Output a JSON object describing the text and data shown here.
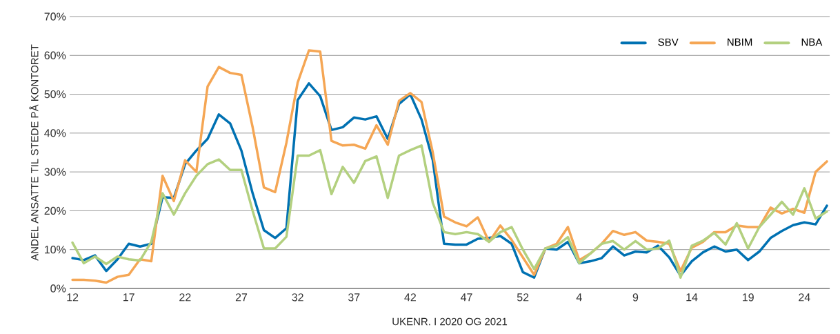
{
  "chart_data": {
    "type": "line",
    "xlabel": "UKENR. I 2020 OG 2021",
    "ylabel": "ANDEL ANSATTE TIL STEDE PÅ KONTORET",
    "categories": [
      "12",
      null,
      null,
      null,
      null,
      "17",
      null,
      null,
      null,
      null,
      "22",
      null,
      null,
      null,
      null,
      "27",
      null,
      null,
      null,
      null,
      "32",
      null,
      null,
      null,
      null,
      "37",
      null,
      null,
      null,
      null,
      "42",
      null,
      null,
      null,
      null,
      "47",
      null,
      null,
      null,
      null,
      "52",
      null,
      null,
      null,
      null,
      "4",
      null,
      null,
      null,
      null,
      "9",
      null,
      null,
      null,
      null,
      "14",
      null,
      null,
      null,
      null,
      "19",
      null,
      null,
      null,
      null,
      "24",
      null,
      null
    ],
    "series": [
      {
        "name": "SBV",
        "color": "#0071b2",
        "values": [
          7.8,
          7.3,
          8.5,
          4.5,
          7.5,
          11.5,
          10.8,
          11.5,
          23.5,
          23.3,
          32,
          35.5,
          38.5,
          44.8,
          42.5,
          35.5,
          24.5,
          15,
          13,
          15.5,
          48.5,
          52.8,
          49.5,
          40.8,
          41.5,
          44,
          43.5,
          44.3,
          38.5,
          47.5,
          50,
          43.5,
          33,
          11.5,
          11.3,
          11.3,
          12.8,
          13,
          13.5,
          11.5,
          4.2,
          2.8,
          10.3,
          10,
          12,
          6.5,
          7,
          7.8,
          10.8,
          8.5,
          9.5,
          9.3,
          11,
          8,
          3.3,
          7,
          9.3,
          10.8,
          9.5,
          10,
          7.3,
          9.5,
          13,
          14.8,
          16.3,
          17,
          16.5,
          21.3
        ]
      },
      {
        "name": "NBIM",
        "color": "#f5a654",
        "values": [
          2.2,
          2.2,
          2,
          1.5,
          3,
          3.5,
          7.5,
          7,
          29,
          22.5,
          33,
          30,
          52,
          57,
          55.5,
          55,
          41.5,
          26,
          24.8,
          37.5,
          53,
          61.3,
          61,
          38,
          36.8,
          37,
          36,
          42,
          37,
          48.3,
          50.3,
          48,
          35,
          18.5,
          17,
          16,
          18.3,
          12,
          16.2,
          12.5,
          8,
          3.5,
          10.3,
          11.5,
          15.8,
          7.3,
          9,
          11.5,
          14.8,
          13.8,
          14.5,
          12.3,
          12,
          11.5,
          4.5,
          10.5,
          12,
          14.5,
          14.5,
          16.2,
          15.8,
          15.8,
          20.8,
          19.3,
          20.5,
          19.5,
          30,
          32.7
        ]
      },
      {
        "name": "NBA",
        "color": "#b3d07f",
        "values": [
          11.8,
          6.5,
          8.2,
          6.3,
          8.2,
          7.5,
          7.2,
          12,
          24.5,
          19,
          24.5,
          29,
          32,
          33.2,
          30.5,
          30.5,
          20,
          10.3,
          10.3,
          13.3,
          34.2,
          34.2,
          35.6,
          24.3,
          31.3,
          27.2,
          32.8,
          34,
          23.3,
          34.2,
          35.6,
          36.8,
          22,
          14.5,
          14,
          14.5,
          14,
          12,
          14.5,
          15.8,
          10,
          5,
          10.3,
          11,
          13.2,
          6.5,
          9,
          11.5,
          12.2,
          10,
          12.2,
          10,
          10.3,
          12.3,
          2.8,
          11,
          12.3,
          14.3,
          11.3,
          16.8,
          10.3,
          15.8,
          19,
          22.3,
          19,
          25.8,
          18,
          19.8
        ]
      }
    ],
    "ylim": [
      0,
      70
    ],
    "yticks": [
      {
        "value": 0,
        "label": "0%"
      },
      {
        "value": 10,
        "label": "10%"
      },
      {
        "value": 20,
        "label": "20%"
      },
      {
        "value": 30,
        "label": "30%"
      },
      {
        "value": 40,
        "label": "40%"
      },
      {
        "value": 50,
        "label": "50%"
      },
      {
        "value": 60,
        "label": "60%"
      },
      {
        "value": 70,
        "label": "70%"
      }
    ],
    "grid": "y",
    "legend": "top right",
    "marker": "none",
    "line_style": "solid"
  }
}
